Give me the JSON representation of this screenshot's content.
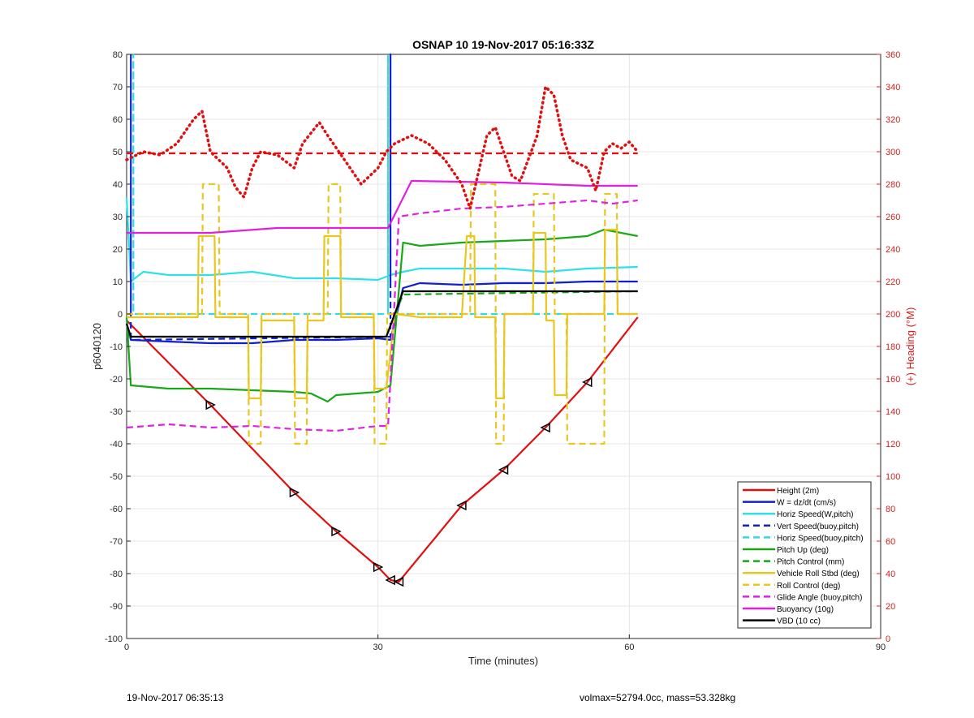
{
  "footer": {
    "left": "19-Nov-2017 06:35:13",
    "right": "volmax=52794.0cc, mass=53.328kg"
  },
  "chart_data": {
    "type": "line",
    "title": "OSNAP 10 19-Nov-2017 05:16:33Z",
    "xlabel": "Time (minutes)",
    "ylabel": "p6040120",
    "y2label": "(+) Heading (°M)",
    "xlim": [
      0,
      90
    ],
    "ylim": [
      -100,
      80
    ],
    "y2lim": [
      0,
      360
    ],
    "xticks": [
      0,
      30,
      60,
      90
    ],
    "yticks": [
      -100,
      -90,
      -80,
      -70,
      -60,
      -50,
      -40,
      -30,
      -20,
      -10,
      0,
      10,
      20,
      30,
      40,
      50,
      60,
      70,
      80
    ],
    "y2ticks": [
      0,
      20,
      40,
      60,
      80,
      100,
      120,
      140,
      160,
      180,
      200,
      220,
      240,
      260,
      280,
      300,
      320,
      340,
      360
    ],
    "grid": true,
    "legend_position": "bottom-right",
    "series": [
      {
        "name": "Height (2m)",
        "color": "#e01010",
        "style": "solid",
        "axis": "left",
        "x": [
          0,
          10,
          20,
          25,
          30,
          31.5,
          32.5,
          40,
          45,
          50,
          55,
          61
        ],
        "y": [
          -2,
          -28,
          -55,
          -67,
          -78,
          -82,
          -82.5,
          -59,
          -48,
          -35,
          -21,
          -1
        ]
      },
      {
        "name": "W = dz/dt (cm/s)",
        "color": "#1020cc",
        "style": "solid",
        "axis": "left",
        "x": [
          0,
          0.5,
          5,
          10,
          15,
          20,
          25,
          30,
          31.5,
          33,
          35,
          40,
          45,
          50,
          55,
          61
        ],
        "y": [
          -3,
          -8,
          -8.5,
          -9,
          -9,
          -8,
          -8,
          -7.5,
          -8,
          8,
          9.5,
          9,
          9.5,
          9.5,
          10,
          10
        ]
      },
      {
        "name": "Horiz Speed(W,pitch)",
        "color": "#30e0e8",
        "style": "solid",
        "axis": "left",
        "x": [
          0,
          0.5,
          2,
          5,
          10,
          15,
          20,
          25,
          30,
          31.5,
          33,
          35,
          40,
          45,
          50,
          55,
          61
        ],
        "y": [
          36,
          10,
          13,
          12,
          12,
          13,
          11,
          11,
          10.5,
          12,
          13,
          14,
          14,
          14,
          13,
          14,
          14.5
        ]
      },
      {
        "name": "Vert Speed(buoy,pitch)",
        "color": "#1020cc",
        "style": "dashed",
        "axis": "left",
        "x": [
          0.5,
          0.5,
          0.5,
          31.5,
          31.5,
          31.5
        ],
        "y": [
          0,
          80,
          -8,
          -7,
          80,
          8
        ]
      },
      {
        "name": "Horiz Speed(buoy,pitch)",
        "color": "#30d8e8",
        "style": "dashed",
        "axis": "left",
        "x": [
          0,
          0.8,
          0.8,
          0.8,
          31,
          31.2,
          31.2,
          31.2,
          61
        ],
        "y": [
          0,
          0,
          80,
          0,
          0,
          0,
          80,
          0,
          0
        ]
      },
      {
        "name": "Pitch Up (deg)",
        "color": "#18a818",
        "style": "solid",
        "axis": "left",
        "x": [
          0,
          0.5,
          5,
          10,
          15,
          20,
          22,
          24,
          25,
          30,
          31.5,
          33,
          35,
          40,
          45,
          50,
          55,
          57,
          61
        ],
        "y": [
          -1,
          -22,
          -23,
          -23,
          -23.5,
          -24,
          -24.5,
          -27,
          -25,
          -24,
          -22,
          22,
          21,
          22,
          22.5,
          23,
          24,
          26,
          24
        ]
      },
      {
        "name": "Pitch Control (mm)",
        "color": "#18a818",
        "style": "dashed",
        "axis": "left",
        "x": [
          0,
          31,
          33,
          61
        ],
        "y": [
          -7,
          -7,
          6,
          7
        ]
      },
      {
        "name": "Vehicle Roll Stbd (deg)",
        "color": "#e8c820",
        "style": "solid",
        "axis": "left",
        "x": [
          0,
          8.5,
          8.6,
          10.5,
          10.6,
          14.5,
          14.6,
          16,
          16.1,
          20,
          20.1,
          21.5,
          21.6,
          23.5,
          23.6,
          25.5,
          25.6,
          29.5,
          29.6,
          31,
          32,
          35,
          40,
          40.6,
          41.5,
          41.6,
          44,
          44.1,
          45,
          45.1,
          48.5,
          48.6,
          50,
          50.1,
          51,
          51.1,
          52.5,
          52.6,
          57,
          57.1,
          58.5,
          58.6,
          61
        ],
        "y": [
          -1,
          -1,
          24,
          24,
          -1,
          -1,
          -26,
          -26,
          -2,
          -2,
          -26,
          -26,
          -2,
          -2,
          24,
          24,
          -1,
          -1,
          -23,
          -23,
          0,
          -1,
          -1,
          24,
          24,
          -1,
          -1,
          -26,
          -26,
          0,
          0,
          25,
          25,
          -2,
          -2,
          -25,
          -25,
          0,
          0,
          26,
          26,
          0,
          0
        ]
      },
      {
        "name": "Roll Control (deg)",
        "color": "#e8c820",
        "style": "dashed",
        "axis": "left",
        "x": [
          0,
          9,
          9.1,
          11,
          11.1,
          14.5,
          14.6,
          16,
          16.1,
          20,
          20.1,
          21.5,
          21.6,
          24,
          24.1,
          25.5,
          25.6,
          29.5,
          29.6,
          31,
          31.1,
          41,
          41.1,
          44,
          44.1,
          45,
          45.1,
          48.5,
          48.6,
          51,
          51.1,
          52.5,
          52.6,
          57,
          57.1,
          58.5,
          58.6,
          61
        ],
        "y": [
          0,
          0,
          40,
          40,
          0,
          0,
          -40,
          -40,
          0,
          0,
          -40,
          -40,
          0,
          0,
          40,
          40,
          0,
          0,
          -40,
          -40,
          0,
          0,
          40,
          40,
          -40,
          -40,
          0,
          0,
          37,
          37,
          0,
          0,
          -40,
          -40,
          37,
          37,
          0,
          0
        ]
      },
      {
        "name": "Glide Angle (buoy,pitch)",
        "color": "#e020e0",
        "style": "dashed",
        "axis": "left",
        "x": [
          0,
          5,
          10,
          15,
          20,
          25,
          30,
          31.2,
          32.5,
          35,
          40,
          45,
          50,
          55,
          58,
          61
        ],
        "y": [
          -35,
          -34,
          -35,
          -34.5,
          -35.5,
          -36,
          -34.5,
          -34.5,
          30,
          31,
          32.5,
          33,
          34,
          35,
          34,
          35
        ]
      },
      {
        "name": "Buoyancy (10g)",
        "color": "#e020e0",
        "style": "solid",
        "axis": "left",
        "x": [
          0,
          10,
          18,
          31.2,
          34,
          45,
          55,
          61
        ],
        "y": [
          25,
          25,
          26.5,
          26.5,
          41,
          40.5,
          39.5,
          39.5
        ]
      },
      {
        "name": "VBD (10 cc)",
        "color": "#000000",
        "style": "solid",
        "axis": "left",
        "x": [
          0,
          0.5,
          31,
          33,
          61
        ],
        "y": [
          -3,
          -7,
          -7,
          7,
          7
        ]
      },
      {
        "name": "",
        "color": "#e01010",
        "style": "dashed",
        "axis": "right",
        "x": [
          0,
          61
        ],
        "y": [
          299,
          299
        ]
      },
      {
        "name": "",
        "color": "#e01010",
        "style": "dotted",
        "axis": "right",
        "x": [
          0,
          2,
          4,
          6,
          8,
          9,
          10,
          12,
          13,
          14,
          15,
          16,
          18,
          20,
          21,
          23,
          24,
          26,
          28,
          30,
          31,
          32,
          34,
          36,
          38,
          40,
          41,
          43,
          44,
          45,
          46,
          47,
          49,
          50,
          51,
          52,
          53,
          55,
          56,
          57,
          58,
          59,
          60,
          61
        ],
        "y": [
          295,
          300,
          298,
          305,
          320,
          325,
          300,
          290,
          278,
          272,
          290,
          300,
          298,
          290,
          305,
          318,
          310,
          295,
          280,
          290,
          300,
          305,
          310,
          305,
          295,
          280,
          265,
          310,
          315,
          300,
          285,
          282,
          310,
          340,
          335,
          310,
          295,
          290,
          276,
          300,
          305,
          302,
          306,
          300
        ]
      }
    ]
  }
}
